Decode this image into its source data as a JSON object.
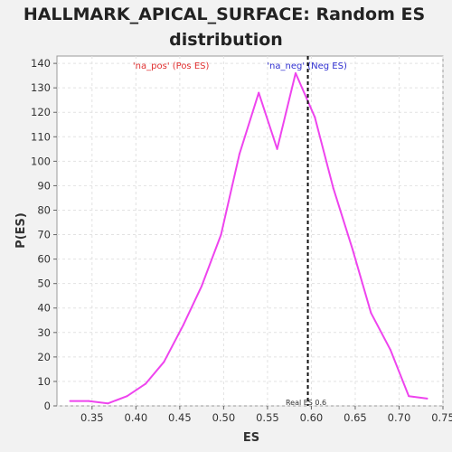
{
  "chart_data": {
    "type": "line",
    "title_lines": [
      "HALLMARK_APICAL_SURFACE: Random ES",
      "distribution"
    ],
    "xlabel": "ES",
    "ylabel": "P(ES)",
    "xlim": [
      0.31,
      0.75
    ],
    "ylim": [
      0,
      143
    ],
    "xticks": [
      0.35,
      0.4,
      0.45,
      0.5,
      0.55,
      0.6,
      0.65,
      0.7,
      0.75
    ],
    "xtick_labels": [
      "0.35",
      "0.40",
      "0.45",
      "0.50",
      "0.55",
      "0.60",
      "0.65",
      "0.70",
      "0.75"
    ],
    "yticks": [
      0,
      10,
      20,
      30,
      40,
      50,
      60,
      70,
      80,
      90,
      100,
      110,
      120,
      130,
      140
    ],
    "grid": true,
    "series": [
      {
        "color": "#ee44ee",
        "x": [
          0.325,
          0.346,
          0.368,
          0.39,
          0.411,
          0.432,
          0.454,
          0.475,
          0.497,
          0.518,
          0.54,
          0.561,
          0.582,
          0.604,
          0.625,
          0.647,
          0.668,
          0.69,
          0.711,
          0.732
        ],
        "y": [
          2,
          2,
          1,
          4,
          9,
          18,
          33,
          49,
          70,
          103,
          128,
          105,
          136,
          118,
          89,
          64,
          38,
          23,
          4,
          3
        ]
      }
    ],
    "reference_line": {
      "x": 0.596,
      "label": "Real ES 0.6",
      "color": "#111111"
    },
    "annotations": [
      {
        "text": "'na_pos' (Pos ES)",
        "x": 0.44,
        "color": "#e03030"
      },
      {
        "text": "'na_neg' (Neg ES)",
        "x": 0.595,
        "color": "#3030d0"
      }
    ]
  }
}
